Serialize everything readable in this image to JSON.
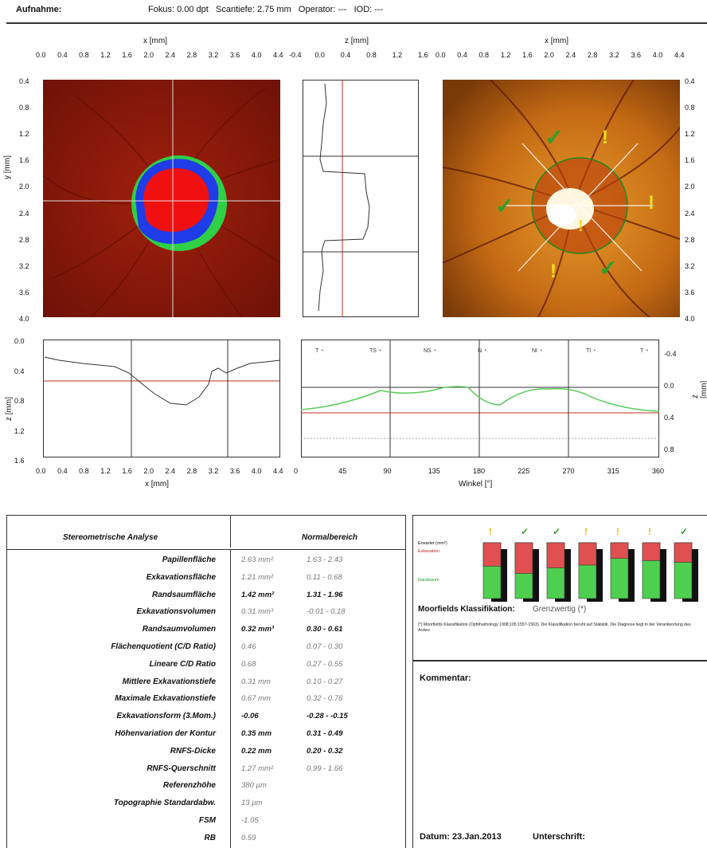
{
  "header": {
    "label": "Aufnahme:",
    "info": "Fokus: 0.00 dpt   Scantiefe: 2.75 mm   Operator: ---   IOD: ---"
  },
  "plots": {
    "topo": {
      "xlabel": "x [mm]",
      "ylabel": "y [mm]",
      "xticks": [
        "0.0",
        "0.4",
        "0.8",
        "1.2",
        "1.6",
        "2.0",
        "2.4",
        "2.8",
        "3.2",
        "3.6",
        "4.0",
        "4.4"
      ],
      "yticks": [
        "0.4",
        "0.8",
        "1.2",
        "1.6",
        "2.0",
        "2.4",
        "2.8",
        "3.2",
        "3.6",
        "4.0"
      ]
    },
    "vprofile": {
      "xlabel": "z [mm]",
      "xticks": [
        "-0.4",
        "0.0",
        "0.4",
        "0.8",
        "1.2",
        "1.6"
      ]
    },
    "fundus": {
      "xlabel": "x [mm]",
      "xticks": [
        "0.0",
        "0.4",
        "0.8",
        "1.2",
        "1.6",
        "2.0",
        "2.4",
        "2.8",
        "3.2",
        "3.6",
        "4.0",
        "4.4"
      ],
      "yticks": [
        "0.4",
        "0.8",
        "1.2",
        "1.6",
        "2.0",
        "2.4",
        "2.8",
        "3.2",
        "3.6",
        "4.0"
      ]
    },
    "hprofile": {
      "xlabel": "x [mm]",
      "ylabel": "z [mm]",
      "xticks": [
        "0.0",
        "0.4",
        "0.8",
        "1.2",
        "1.6",
        "2.0",
        "2.4",
        "2.8",
        "3.2",
        "3.6",
        "4.0",
        "4.4"
      ],
      "yticks": [
        "0.0",
        "0.4",
        "0.8",
        "1.2",
        "1.6"
      ]
    },
    "contour": {
      "xlabel": "Winkel [°]",
      "ylabel": "z [mm]",
      "xticks": [
        "0",
        "45",
        "90",
        "135",
        "180",
        "225",
        "270",
        "315",
        "360"
      ],
      "yticks": [
        "-0.4",
        "0.0",
        "0.4",
        "0.8"
      ],
      "segments": [
        "T",
        "TS",
        "NS",
        "N",
        "NI",
        "TI",
        "T"
      ]
    }
  },
  "stereometric": {
    "title": "Stereometrische Analyse",
    "normal_title": "Normalbereich",
    "rows": [
      {
        "label": "Papillenfläche",
        "value": "2.63 mm²",
        "range": "1.63 - 2.43",
        "bold": false
      },
      {
        "label": "Exkavationsfläche",
        "value": "1.21 mm²",
        "range": "0.11 - 0.68",
        "bold": false
      },
      {
        "label": "Randsaumfläche",
        "value": "1.42 mm²",
        "range": "1.31 - 1.96",
        "bold": true
      },
      {
        "label": "Exkavationsvolumen",
        "value": "0.31 mm³",
        "range": "-0.01 - 0.18",
        "bold": false
      },
      {
        "label": "Randsaumvolumen",
        "value": "0.32 mm³",
        "range": "0.30 - 0.61",
        "bold": true
      },
      {
        "label": "Flächenquotient (C/D Ratio)",
        "value": "0.46",
        "range": "0.07 - 0.30",
        "bold": false
      },
      {
        "label": "Lineare C/D Ratio",
        "value": "0.68",
        "range": "0.27 - 0.55",
        "bold": false
      },
      {
        "label": "Mittlere Exkavationstiefe",
        "value": "0.31 mm",
        "range": "0.10 - 0.27",
        "bold": false
      },
      {
        "label": "Maximale Exkavationstiefe",
        "value": "0.67 mm",
        "range": "0.32 - 0.76",
        "bold": false
      },
      {
        "label": "Exkavationsform (3.Mom.)",
        "value": "-0.06",
        "range": "-0.28 - -0.15",
        "bold": true
      },
      {
        "label": "Höhenvariation der Kontur",
        "value": "0.35 mm",
        "range": "0.31 - 0.49",
        "bold": true
      },
      {
        "label": "RNFS-Dicke",
        "value": "0.22 mm",
        "range": "0.20 - 0.32",
        "bold": true
      },
      {
        "label": "RNFS-Querschnitt",
        "value": "1.27 mm²",
        "range": "0.99 - 1.66",
        "bold": false
      },
      {
        "label": "Referenzhöhe",
        "value": "380 µm",
        "range": "",
        "bold": false
      },
      {
        "label": "Topographie Standardabw.",
        "value": "13 µm",
        "range": "",
        "bold": false
      },
      {
        "label": "FSM",
        "value": "-1.05",
        "range": "",
        "bold": false
      },
      {
        "label": "RB",
        "value": "0.59",
        "range": "",
        "bold": false
      }
    ]
  },
  "moorfields": {
    "label": "Moorfields Klassifikation:",
    "value": "Grenzwertig (*)",
    "footnote": "(*) Moorfields Klassifikation (Ophthalmology 1998;105:1557-1563). Die Klassifikation beruht auf Statistik. Die Diagnose liegt in der Verantwortung des Arztes.",
    "legend": [
      "Erwartet (mm²)",
      "Exkavation",
      "Randsaum"
    ],
    "bars": [
      {
        "status": "warn",
        "cup": 0.42
      },
      {
        "status": "ok",
        "cup": 0.55
      },
      {
        "status": "ok",
        "cup": 0.45
      },
      {
        "status": "warn",
        "cup": 0.4
      },
      {
        "status": "warn",
        "cup": 0.28
      },
      {
        "status": "warn",
        "cup": 0.32
      },
      {
        "status": "ok",
        "cup": 0.35
      }
    ]
  },
  "comment": {
    "label": "Kommentar:"
  },
  "footer": {
    "date": "Datum: 23.Jan.2013",
    "signature": "Unterschrift:"
  }
}
